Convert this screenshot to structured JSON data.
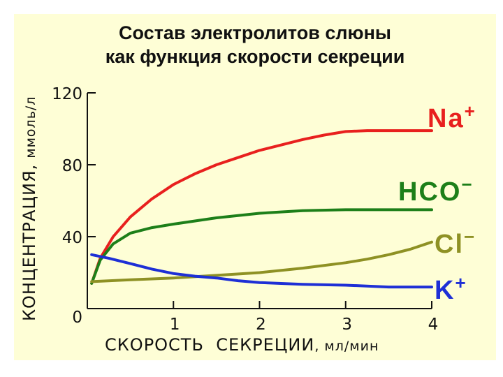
{
  "chart_data": {
    "type": "line",
    "title_lines": [
      "Состав электролитов слюны",
      "как функция скорости секреции"
    ],
    "xlabel": "СКОРОСТЬ  СЕКРЕЦИИ",
    "xlabel_unit": ", мл/мин",
    "ylabel": "КОНЦЕНТРАЦИЯ,",
    "ylabel_unit": "ммоль/л",
    "x_ticks": [
      "1",
      "2",
      "3",
      "4"
    ],
    "x_tick_values": [
      1,
      2,
      3,
      4
    ],
    "y_ticks": [
      "0",
      "40",
      "80",
      "120"
    ],
    "y_tick_values": [
      0,
      40,
      80,
      120
    ],
    "xlim": [
      0,
      4
    ],
    "ylim": [
      0,
      120
    ],
    "grid": false,
    "series": [
      {
        "name": "Na",
        "sup": "+",
        "color": "#e8201e",
        "x": [
          0.05,
          0.15,
          0.3,
          0.5,
          0.75,
          1.0,
          1.25,
          1.5,
          1.75,
          2.0,
          2.25,
          2.5,
          2.75,
          3.0,
          3.25,
          3.5,
          4.0
        ],
        "y": [
          14,
          28,
          40,
          51,
          61,
          69,
          75,
          80,
          84,
          88,
          91,
          94,
          96.5,
          98.5,
          99,
          99,
          99
        ]
      },
      {
        "name": "HCO",
        "sup": "−",
        "color": "#1d7f19",
        "x": [
          0.05,
          0.15,
          0.3,
          0.5,
          0.75,
          1.0,
          1.5,
          2.0,
          2.5,
          3.0,
          3.5,
          4.0
        ],
        "y": [
          14,
          27,
          36,
          42,
          45,
          47,
          50.5,
          53,
          54.5,
          55,
          55,
          55
        ]
      },
      {
        "name": "Cl",
        "sup": "−",
        "color": "#8e9124",
        "x": [
          0.05,
          0.5,
          1.0,
          1.5,
          2.0,
          2.5,
          3.0,
          3.25,
          3.5,
          3.75,
          4.0
        ],
        "y": [
          15,
          16,
          17,
          18.5,
          20,
          22.5,
          25.5,
          27.5,
          30,
          33,
          37
        ]
      },
      {
        "name": "K",
        "sup": "+",
        "color": "#1e2fd6",
        "x": [
          0.05,
          0.25,
          0.5,
          0.75,
          1.0,
          1.25,
          1.5,
          1.75,
          2.0,
          2.5,
          3.0,
          3.5,
          4.0
        ],
        "y": [
          30,
          28,
          25,
          22,
          19.5,
          18,
          17,
          15.5,
          14.5,
          13.5,
          13,
          12,
          12
        ]
      }
    ]
  }
}
